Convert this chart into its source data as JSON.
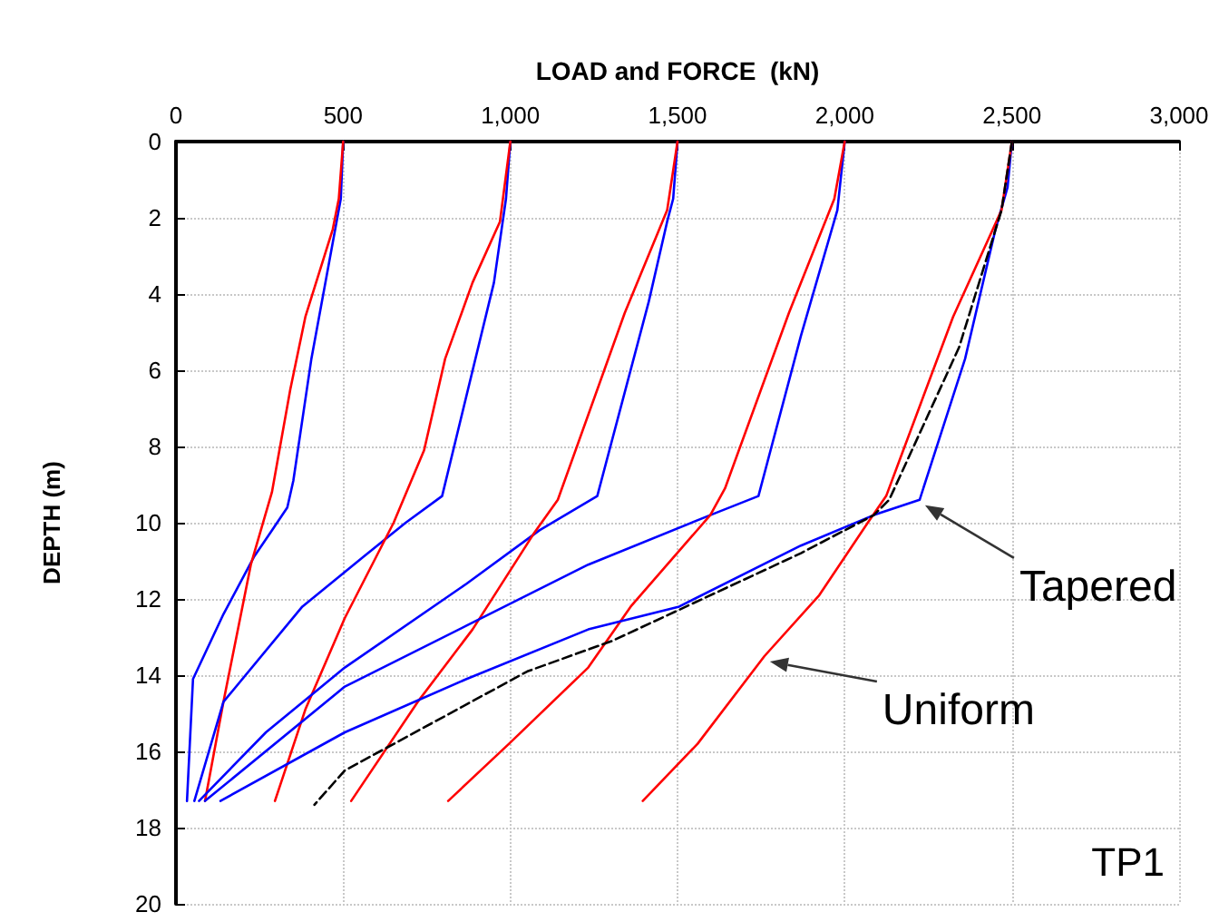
{
  "chart_data": {
    "type": "line",
    "xlabel": "LOAD and FORCE  (kN)",
    "ylabel": "DEPTH (m)",
    "xlim": [
      0,
      3000
    ],
    "xticks": [
      0,
      500,
      {
        "value": 1000,
        "label": "1,000"
      },
      {
        "value": 1500,
        "label": "1,500"
      },
      {
        "value": 2000,
        "label": "2,000"
      },
      {
        "value": 2500,
        "label": "2,500"
      },
      {
        "value": 3000,
        "label": "3,000"
      }
    ],
    "ylim": [
      20,
      0
    ],
    "yticks": [
      0,
      2,
      4,
      6,
      8,
      10,
      12,
      14,
      16,
      18,
      20
    ],
    "grid": true,
    "marker": "none",
    "series": [
      {
        "color": "#0000ff",
        "x": [
          500,
          493,
          405,
          351,
          333,
          287,
          233,
          142,
          51,
          33
        ],
        "values": [
          0,
          1.5,
          5.7,
          8.9,
          9.6,
          10.2,
          10.9,
          12.4,
          14.1,
          17.3
        ]
      },
      {
        "color": "#ff0000",
        "x": [
          500,
          487,
          469,
          387,
          342,
          287,
          224,
          142,
          87
        ],
        "values": [
          0,
          1.5,
          2.3,
          4.6,
          6.5,
          9.2,
          11.1,
          14.7,
          17.3
        ]
      },
      {
        "color": "#0000ff",
        "x": [
          1000,
          987,
          951,
          796,
          687,
          560,
          378,
          142,
          55
        ],
        "values": [
          0,
          1.5,
          3.7,
          9.3,
          10.0,
          10.9,
          12.2,
          14.7,
          17.3
        ]
      },
      {
        "color": "#ff0000",
        "x": [
          1000,
          969,
          887,
          805,
          742,
          651,
          505,
          387,
          296
        ],
        "values": [
          0,
          2.1,
          3.7,
          5.7,
          8.1,
          10.0,
          12.5,
          14.9,
          17.3
        ]
      },
      {
        "color": "#0000ff",
        "x": [
          1500,
          1487,
          1469,
          1414,
          1260,
          1087,
          869,
          505,
          269,
          69
        ],
        "values": [
          0,
          1.5,
          2.1,
          4.2,
          9.3,
          10.2,
          11.6,
          13.8,
          15.5,
          17.3
        ]
      },
      {
        "color": "#ff0000",
        "x": [
          1500,
          1469,
          1342,
          1142,
          1069,
          887,
          723,
          524
        ],
        "values": [
          0,
          1.8,
          4.5,
          9.4,
          10.3,
          12.8,
          14.7,
          17.3
        ]
      },
      {
        "color": "#0000ff",
        "x": [
          2000,
          1978,
          1869,
          1742,
          1598,
          1233,
          869,
          505,
          87
        ],
        "values": [
          0,
          1.8,
          5.1,
          9.3,
          9.8,
          11.1,
          12.7,
          14.3,
          17.3
        ]
      },
      {
        "color": "#ff0000",
        "x": [
          2000,
          1969,
          1833,
          1642,
          1598,
          1360,
          1233,
          996,
          814
        ],
        "values": [
          0,
          1.5,
          4.5,
          9.1,
          9.8,
          12.2,
          13.8,
          15.8,
          17.3
        ]
      },
      {
        "color": "#0000ff",
        "x": [
          2500,
          2487,
          2451,
          2360,
          2224,
          2087,
          1869,
          1505,
          1233,
          869,
          505,
          133
        ],
        "values": [
          0,
          1.2,
          2.3,
          5.7,
          9.4,
          9.8,
          10.6,
          12.2,
          12.8,
          14.1,
          15.5,
          17.3
        ]
      },
      {
        "color": "#ff0000",
        "x": [
          2500,
          2469,
          2324,
          2124,
          2069,
          1924,
          1760,
          1560,
          1396
        ],
        "values": [
          0,
          1.8,
          4.6,
          9.3,
          10.0,
          11.9,
          13.5,
          15.8,
          17.3
        ]
      },
      {
        "color": "#000000",
        "line_style": "dashed",
        "x": [
          2500,
          2469,
          2342,
          2133,
          2087,
          1869,
          1305,
          1051,
          778,
          505,
          414
        ],
        "values": [
          0,
          1.8,
          5.4,
          9.4,
          9.8,
          10.8,
          13.1,
          13.9,
          15.2,
          16.5,
          17.4
        ]
      }
    ],
    "annotations": [
      {
        "text": "Tapered",
        "x": 2224,
        "y": 9.4
      },
      {
        "text": "Uniform",
        "x": 1760,
        "y": 13.5
      },
      "TP1"
    ]
  }
}
